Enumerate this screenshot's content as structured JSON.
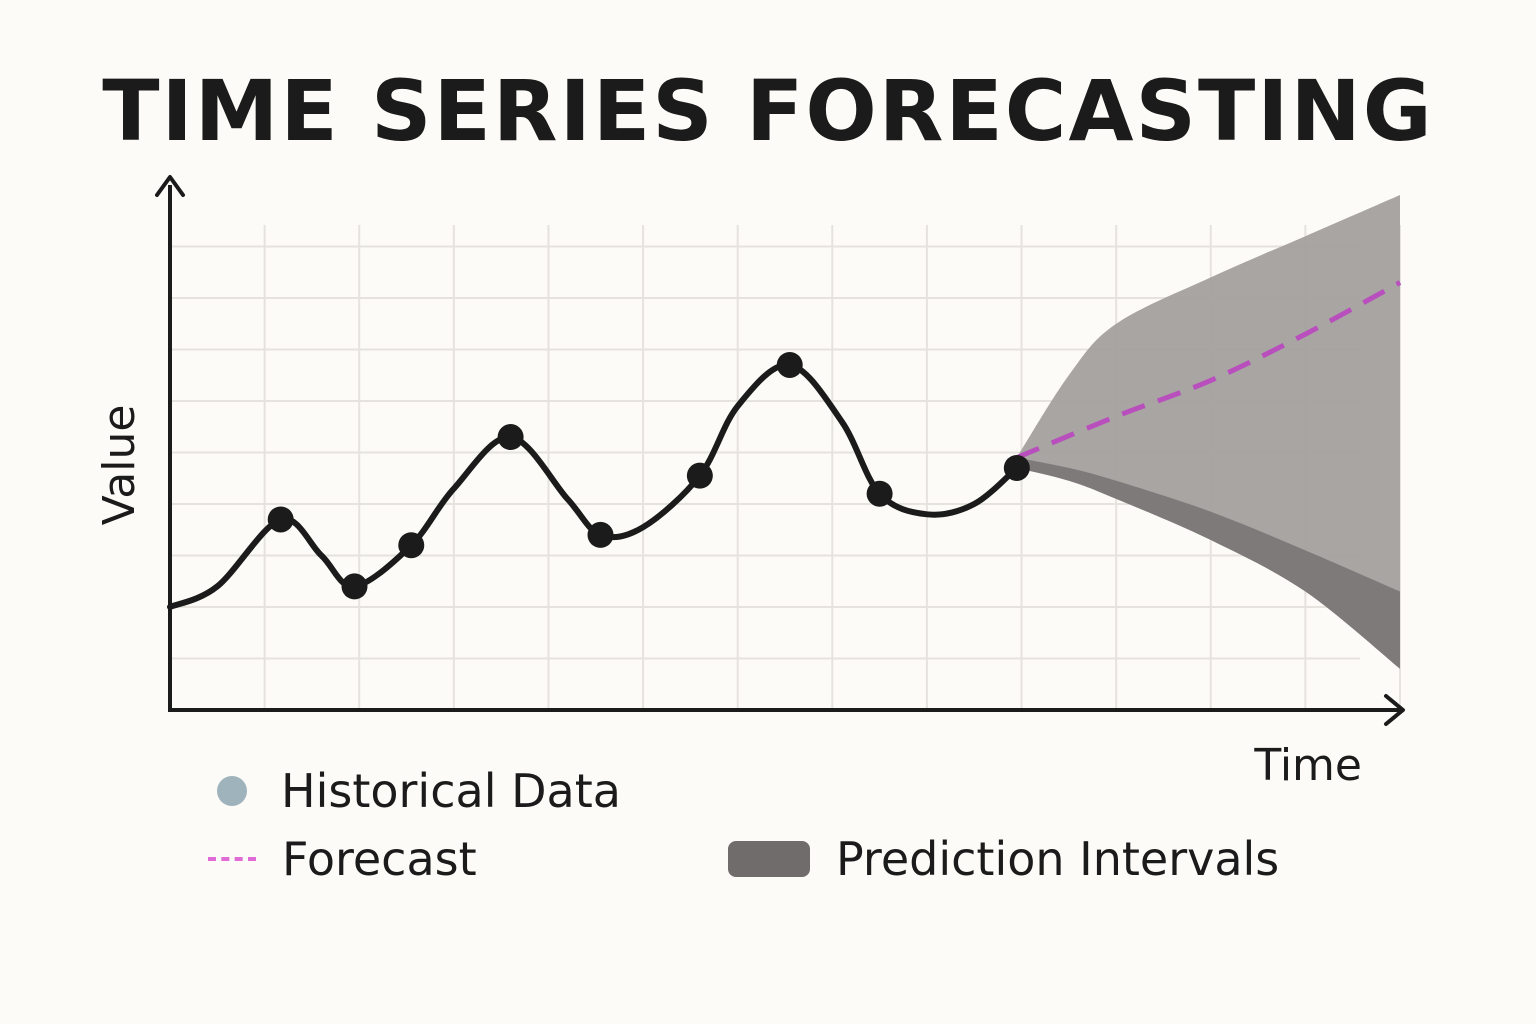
{
  "chart_data": {
    "type": "line",
    "title": "TIME SERIES FORECASTING",
    "xlabel": "Time",
    "ylabel": "Value",
    "xlim": [
      0,
      13
    ],
    "ylim": [
      0,
      10
    ],
    "grid": true,
    "historical": {
      "name": "Historical Data",
      "x": [
        1.17,
        1.95,
        2.55,
        3.6,
        4.55,
        5.6,
        6.55,
        7.5,
        8.95
      ],
      "y": [
        3.7,
        2.4,
        3.2,
        5.3,
        3.4,
        4.55,
        6.7,
        4.2,
        4.7
      ]
    },
    "historical_curve": {
      "x": [
        0,
        0.5,
        1.17,
        1.6,
        1.95,
        2.55,
        3.0,
        3.6,
        4.2,
        4.55,
        5.0,
        5.6,
        6.0,
        6.55,
        7.1,
        7.5,
        8.0,
        8.5,
        8.95
      ],
      "y": [
        2.0,
        2.4,
        3.7,
        3.0,
        2.4,
        3.2,
        4.3,
        5.3,
        4.1,
        3.4,
        3.55,
        4.55,
        5.9,
        6.7,
        5.6,
        4.2,
        3.8,
        4.0,
        4.7
      ]
    },
    "forecast": {
      "name": "Forecast",
      "x": [
        8.95,
        10.0,
        11.0,
        12.0,
        13.0
      ],
      "y": [
        4.9,
        5.7,
        6.4,
        7.3,
        8.3
      ]
    },
    "prediction_interval_outer": {
      "name": "Prediction Intervals",
      "x": [
        8.95,
        9.5,
        10.0,
        11.0,
        12.0,
        13.0
      ],
      "upper": [
        4.9,
        6.5,
        7.5,
        8.4,
        9.2,
        10.0
      ],
      "lower": [
        4.7,
        4.45,
        4.1,
        3.3,
        2.3,
        0.8
      ]
    },
    "prediction_interval_inner_lower": {
      "x": [
        8.95,
        9.5,
        10.0,
        11.0,
        12.0,
        13.0
      ],
      "y": [
        4.9,
        4.7,
        4.45,
        3.85,
        3.1,
        2.3
      ]
    },
    "legend": [
      {
        "label": "Historical Data",
        "color": "#9fb3bd"
      },
      {
        "label": "Forecast",
        "color": "#e06ad6"
      },
      {
        "label": "Prediction Intervals",
        "color": "#6f6c6b"
      }
    ],
    "colors": {
      "line": "#1b1b1b",
      "forecast": "#b84fbd",
      "interval_light": "#a3a09e",
      "interval_dark": "#6f6c6b",
      "grid": "#e6e3df"
    }
  }
}
